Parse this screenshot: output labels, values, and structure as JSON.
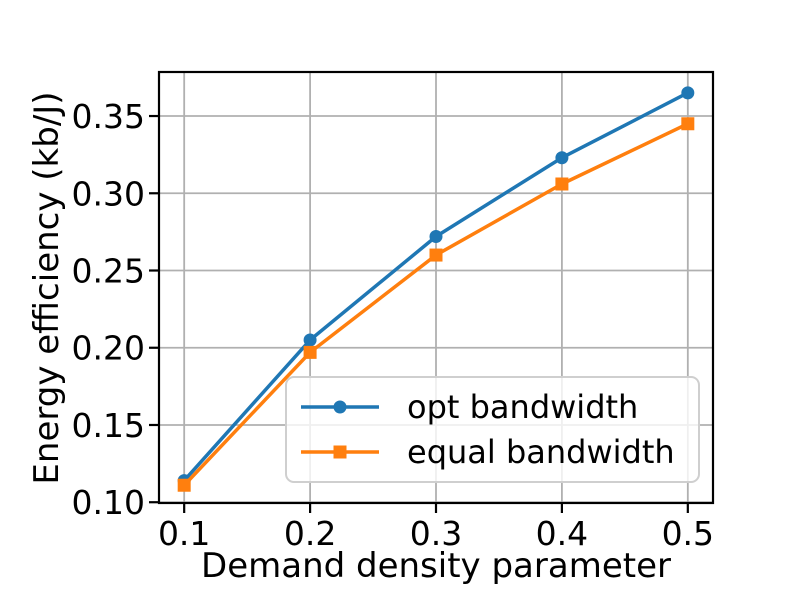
{
  "chart_data": {
    "type": "line",
    "title": "",
    "xlabel": "Demand density parameter",
    "ylabel": "Energy efficiency (kb/J)",
    "x": [
      0.1,
      0.2,
      0.3,
      0.4,
      0.5
    ],
    "series": [
      {
        "name": "opt bandwidth",
        "color": "#1f77b4",
        "marker": "circle",
        "values": [
          0.114,
          0.205,
          0.272,
          0.323,
          0.365
        ]
      },
      {
        "name": "equal bandwidth",
        "color": "#ff7f0e",
        "marker": "square",
        "values": [
          0.111,
          0.197,
          0.26,
          0.306,
          0.345
        ]
      }
    ],
    "xlim": [
      0.08,
      0.52
    ],
    "ylim": [
      0.0995,
      0.3785
    ],
    "xticks": {
      "values": [
        0.1,
        0.2,
        0.3,
        0.4,
        0.5
      ],
      "labels": [
        "0.1",
        "0.2",
        "0.3",
        "0.4",
        "0.5"
      ]
    },
    "yticks": {
      "values": [
        0.1,
        0.15,
        0.2,
        0.25,
        0.3,
        0.35
      ],
      "labels": [
        "0.10",
        "0.15",
        "0.20",
        "0.25",
        "0.30",
        "0.35"
      ]
    },
    "grid": true,
    "grid_color": "#b0b0b0",
    "axis_color": "#000000",
    "legend": {
      "position": "inside lower right"
    }
  }
}
